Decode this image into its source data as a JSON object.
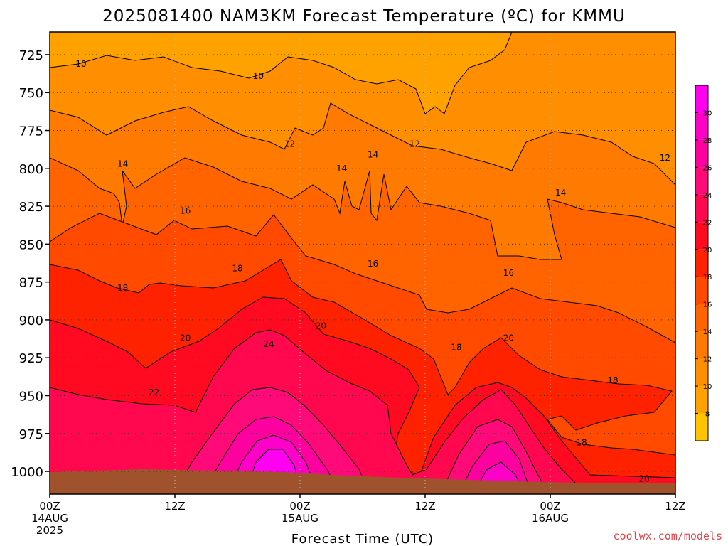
{
  "chart_data": {
    "type": "heatmap",
    "title": "2025081400 NAM3KM Forecast Temperature (ºC) for KMMU",
    "xlabel": "Forecast Time (UTC)",
    "ylabel": "",
    "x_ticks": [
      {
        "hour": 0,
        "line1": "00Z",
        "line2": "14AUG",
        "line3": "2025"
      },
      {
        "hour": 12,
        "line1": "12Z",
        "line2": "",
        "line3": ""
      },
      {
        "hour": 24,
        "line1": "00Z",
        "line2": "15AUG",
        "line3": ""
      },
      {
        "hour": 36,
        "line1": "12Z",
        "line2": "",
        "line3": ""
      },
      {
        "hour": 48,
        "line1": "00Z",
        "line2": "16AUG",
        "line3": ""
      },
      {
        "hour": 60,
        "line1": "12Z",
        "line2": "",
        "line3": ""
      }
    ],
    "xlim": [
      0,
      60
    ],
    "y_ticks": [
      725,
      750,
      775,
      800,
      825,
      850,
      875,
      900,
      925,
      950,
      975,
      1000
    ],
    "ylim": [
      1015,
      710
    ],
    "grid": true,
    "colorbar": {
      "levels": [
        8,
        10,
        12,
        14,
        16,
        18,
        20,
        22,
        24,
        26,
        28,
        30
      ],
      "colors": [
        "#ffc400",
        "#ffa200",
        "#ff8e00",
        "#ff7a00",
        "#ff6400",
        "#ff4a00",
        "#ff2200",
        "#ff0a20",
        "#ff0850",
        "#ff0a78",
        "#ff00a0",
        "#ff00c8",
        "#ff00f0"
      ]
    },
    "contour_labels": [
      {
        "value": "10",
        "hour": 3.0,
        "p": 731
      },
      {
        "value": "10",
        "hour": 20.0,
        "p": 739
      },
      {
        "value": "12",
        "hour": 23.0,
        "p": 784
      },
      {
        "value": "12",
        "hour": 35.0,
        "p": 784
      },
      {
        "value": "12",
        "hour": 59.0,
        "p": 793
      },
      {
        "value": "14",
        "hour": 7.0,
        "p": 797
      },
      {
        "value": "14",
        "hour": 28.0,
        "p": 800
      },
      {
        "value": "14",
        "hour": 31.0,
        "p": 791
      },
      {
        "value": "14",
        "hour": 49.0,
        "p": 816
      },
      {
        "value": "16",
        "hour": 13.0,
        "p": 828
      },
      {
        "value": "16",
        "hour": 31.0,
        "p": 863
      },
      {
        "value": "16",
        "hour": 44.0,
        "p": 869
      },
      {
        "value": "18",
        "hour": 7.0,
        "p": 879
      },
      {
        "value": "18",
        "hour": 18.0,
        "p": 866
      },
      {
        "value": "18",
        "hour": 39.0,
        "p": 918
      },
      {
        "value": "18",
        "hour": 54.0,
        "p": 940
      },
      {
        "value": "18",
        "hour": 51.0,
        "p": 981
      },
      {
        "value": "20",
        "hour": 13.0,
        "p": 912
      },
      {
        "value": "20",
        "hour": 26.0,
        "p": 904
      },
      {
        "value": "20",
        "hour": 44.0,
        "p": 912
      },
      {
        "value": "20",
        "hour": 57.0,
        "p": 1005
      },
      {
        "value": "22",
        "hour": 10.0,
        "p": 948
      },
      {
        "value": "24",
        "hour": 21.0,
        "p": 916
      }
    ],
    "surface_color": "#a0522d"
  },
  "credit": "coolwx.com/models"
}
